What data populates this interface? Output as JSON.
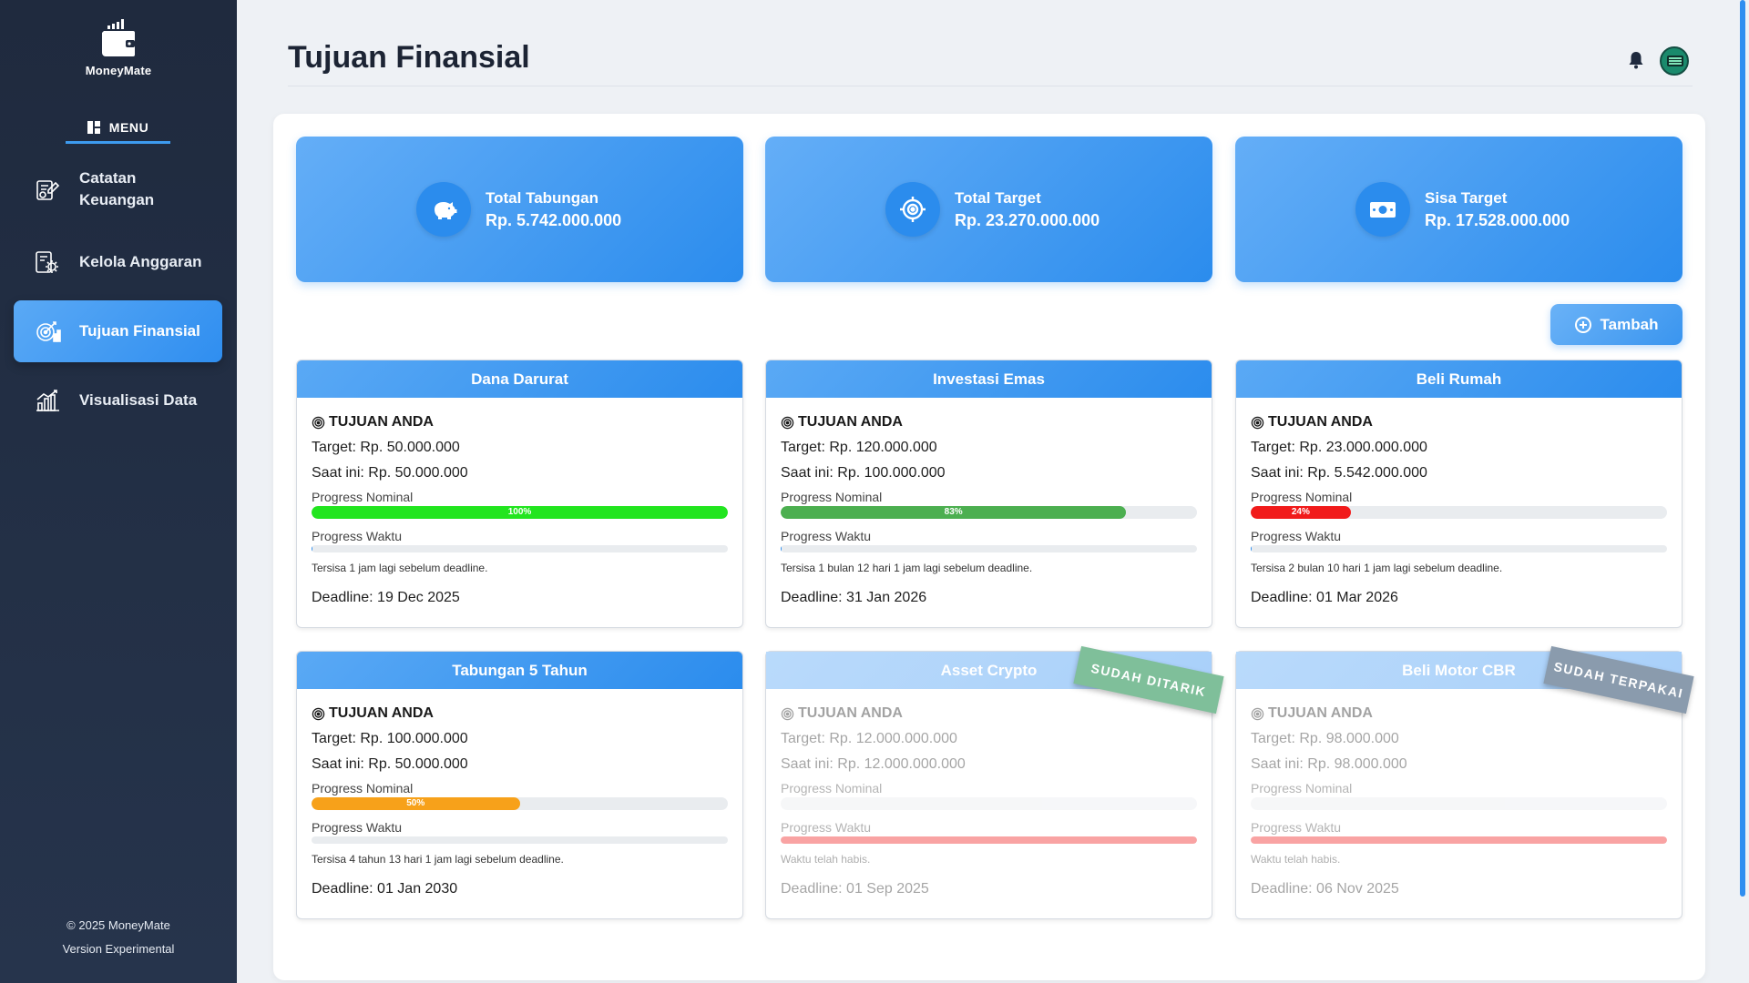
{
  "brand": {
    "name": "MoneyMate"
  },
  "menu": {
    "label": "MENU"
  },
  "nav": [
    {
      "label": "Catatan Keuangan",
      "icon": "notes-icon",
      "active": false
    },
    {
      "label": "Kelola Anggaran",
      "icon": "budget-gear-icon",
      "active": false
    },
    {
      "label": "Tujuan Finansial",
      "icon": "target-goal-icon",
      "active": true
    },
    {
      "label": "Visualisasi Data",
      "icon": "chart-icon",
      "active": false
    }
  ],
  "footer": {
    "copyright": "© 2025 MoneyMate",
    "version": "Version Experimental"
  },
  "header": {
    "title": "Tujuan Finansial"
  },
  "summary": [
    {
      "label": "Total Tabungan",
      "value": "Rp. 5.742.000.000",
      "icon": "piggy-bank-icon"
    },
    {
      "label": "Total Target",
      "value": "Rp. 23.270.000.000",
      "icon": "target-icon"
    },
    {
      "label": "Sisa Target",
      "value": "Rp. 17.528.000.000",
      "icon": "money-bill-icon"
    }
  ],
  "add_button": {
    "label": "Tambah"
  },
  "goals": [
    {
      "title": "Dana Darurat",
      "tag": "TUJUAN ANDA",
      "target": "Target: Rp. 50.000.000",
      "current": "Saat ini: Rp. 50.000.000",
      "nominal_label": "Progress Nominal",
      "nominal_pct": 100,
      "nominal_text": "100%",
      "nominal_color": "#22e51f",
      "time_label": "Progress Waktu",
      "time_pct": 0.3,
      "time_color": "#2b8ced",
      "remaining": "Tersisa 1 jam lagi sebelum deadline.",
      "deadline": "Deadline: 19 Dec 2025",
      "ribbon": "",
      "ribbon_color": ""
    },
    {
      "title": "Investasi Emas",
      "tag": "TUJUAN ANDA",
      "target": "Target: Rp. 120.000.000",
      "current": "Saat ini: Rp. 100.000.000",
      "nominal_label": "Progress Nominal",
      "nominal_pct": 83,
      "nominal_text": "83%",
      "nominal_color": "#4caf50",
      "time_label": "Progress Waktu",
      "time_pct": 0.3,
      "time_color": "#2b8ced",
      "remaining": "Tersisa 1 bulan 12 hari 1 jam lagi sebelum deadline.",
      "deadline": "Deadline: 31 Jan 2026",
      "ribbon": "",
      "ribbon_color": ""
    },
    {
      "title": "Beli Rumah",
      "tag": "TUJUAN ANDA",
      "target": "Target: Rp. 23.000.000.000",
      "current": "Saat ini: Rp. 5.542.000.000",
      "nominal_label": "Progress Nominal",
      "nominal_pct": 24,
      "nominal_text": "24%",
      "nominal_color": "#f11b1b",
      "time_label": "Progress Waktu",
      "time_pct": 0.3,
      "time_color": "#2b8ced",
      "remaining": "Tersisa 2 bulan 10 hari 1 jam lagi sebelum deadline.",
      "deadline": "Deadline: 01 Mar 2026",
      "ribbon": "",
      "ribbon_color": ""
    },
    {
      "title": "Tabungan 5 Tahun",
      "tag": "TUJUAN ANDA",
      "target": "Target: Rp. 100.000.000",
      "current": "Saat ini: Rp. 50.000.000",
      "nominal_label": "Progress Nominal",
      "nominal_pct": 50,
      "nominal_text": "50%",
      "nominal_color": "#f7a11a",
      "time_label": "Progress Waktu",
      "time_pct": 0,
      "time_color": "#2b8ced",
      "remaining": "Tersisa 4 tahun 13 hari 1 jam lagi sebelum deadline.",
      "deadline": "Deadline: 01 Jan 2030",
      "ribbon": "",
      "ribbon_color": ""
    },
    {
      "title": "Asset Crypto",
      "tag": "TUJUAN ANDA",
      "target": "Target: Rp. 12.000.000.000",
      "current": "Saat ini: Rp. 12.000.000.000",
      "nominal_label": "Progress Nominal",
      "nominal_pct": 0,
      "nominal_text": "",
      "nominal_color": "#22e51f",
      "time_label": "Progress Waktu",
      "time_pct": 100,
      "time_color": "#f11b1b",
      "remaining": "Waktu telah habis.",
      "deadline": "Deadline: 01 Sep 2025",
      "ribbon": "SUDAH DITARIK",
      "ribbon_color": "#7fbf9a"
    },
    {
      "title": "Beli Motor CBR",
      "tag": "TUJUAN ANDA",
      "target": "Target: Rp. 98.000.000",
      "current": "Saat ini: Rp. 98.000.000",
      "nominal_label": "Progress Nominal",
      "nominal_pct": 0,
      "nominal_text": "",
      "nominal_color": "#22e51f",
      "time_label": "Progress Waktu",
      "time_pct": 100,
      "time_color": "#f11b1b",
      "remaining": "Waktu telah habis.",
      "deadline": "Deadline: 06 Nov 2025",
      "ribbon": "SUDAH TERPAKAI",
      "ribbon_color": "#8a9bad"
    }
  ]
}
